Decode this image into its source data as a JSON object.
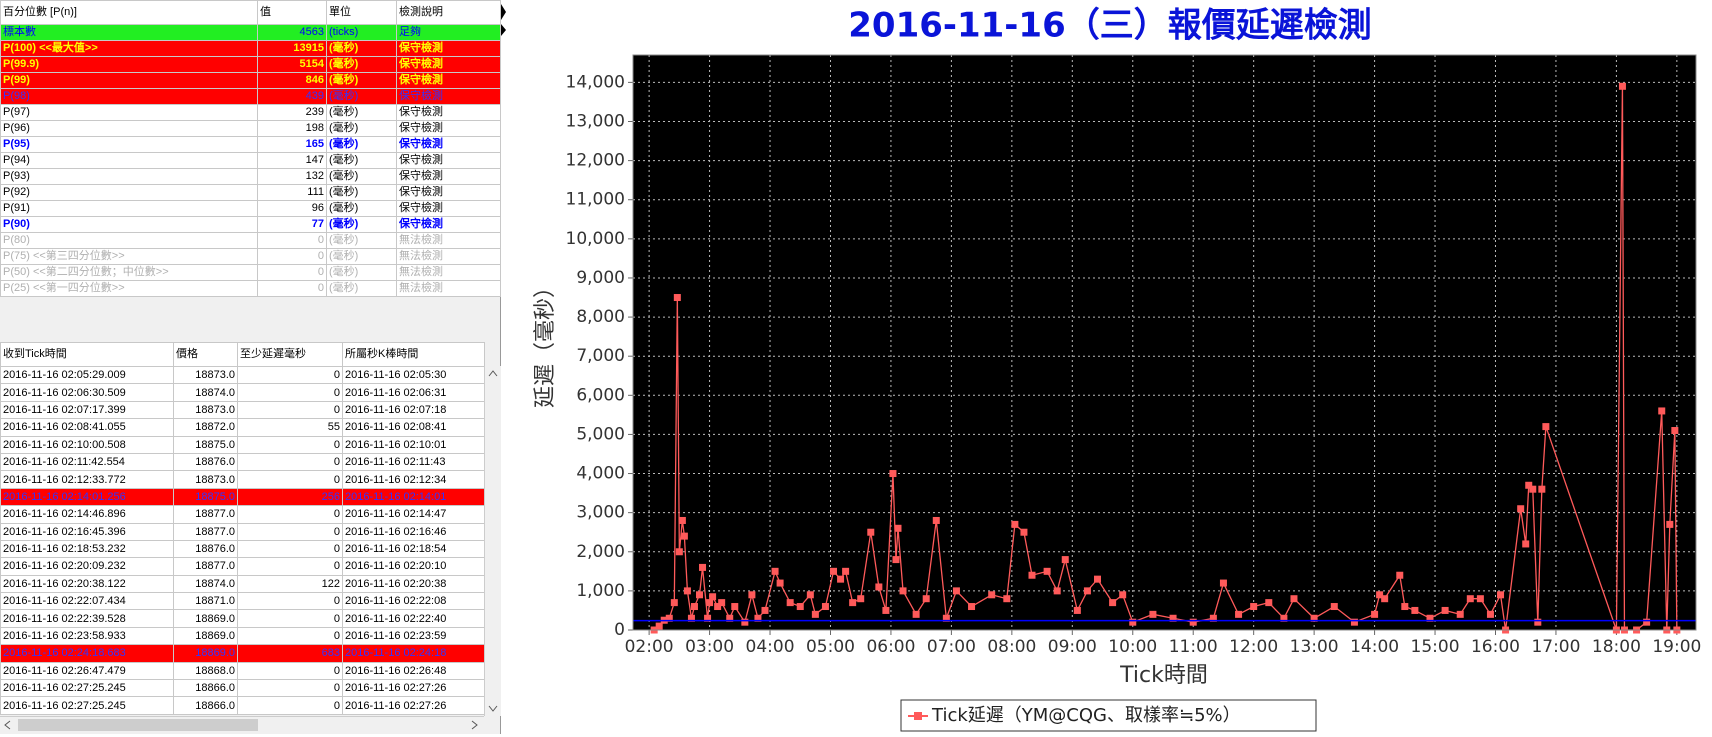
{
  "percentile_table": {
    "header": [
      "百分位數 [P(n)]",
      "值",
      "單位",
      "檢測說明"
    ],
    "rows": [
      {
        "cells": [
          "標本數",
          "4563",
          "(ticks)",
          "足夠"
        ],
        "style": "green"
      },
      {
        "cells": [
          "P(100)  <<最大值>>",
          "13915",
          "(毫秒)",
          "保守檢測"
        ],
        "style": "red-yellow"
      },
      {
        "cells": [
          "P(99.9)",
          "5154",
          "(毫秒)",
          "保守檢測"
        ],
        "style": "red-yellow"
      },
      {
        "cells": [
          "P(99)",
          "846",
          "(毫秒)",
          "保守檢測"
        ],
        "style": "red-yellow"
      },
      {
        "cells": [
          "P(98)",
          "439",
          "(毫秒)",
          "保守檢測"
        ],
        "style": "red-blue"
      },
      {
        "cells": [
          "P(97)",
          "239",
          "(毫秒)",
          "保守檢測"
        ],
        "style": "plain"
      },
      {
        "cells": [
          "P(96)",
          "198",
          "(毫秒)",
          "保守檢測"
        ],
        "style": "plain"
      },
      {
        "cells": [
          "P(95)",
          "165",
          "(毫秒)",
          "保守檢測"
        ],
        "style": "bold-blue"
      },
      {
        "cells": [
          "P(94)",
          "147",
          "(毫秒)",
          "保守檢測"
        ],
        "style": "plain"
      },
      {
        "cells": [
          "P(93)",
          "132",
          "(毫秒)",
          "保守檢測"
        ],
        "style": "plain"
      },
      {
        "cells": [
          "P(92)",
          "111",
          "(毫秒)",
          "保守檢測"
        ],
        "style": "plain"
      },
      {
        "cells": [
          "P(91)",
          "96",
          "(毫秒)",
          "保守檢測"
        ],
        "style": "plain"
      },
      {
        "cells": [
          "P(90)",
          "77",
          "(毫秒)",
          "保守檢測"
        ],
        "style": "bold-blue"
      },
      {
        "cells": [
          "P(80)",
          "0",
          "(毫秒)",
          "無法檢測"
        ],
        "style": "gray"
      },
      {
        "cells": [
          "P(75)  <<第三四分位數>>",
          "0",
          "(毫秒)",
          "無法檢測"
        ],
        "style": "gray"
      },
      {
        "cells": [
          "P(50)  <<第二四分位數；中位數>>",
          "0",
          "(毫秒)",
          "無法檢測"
        ],
        "style": "gray"
      },
      {
        "cells": [
          "P(25)  <<第一四分位數>>",
          "0",
          "(毫秒)",
          "無法檢測"
        ],
        "style": "gray"
      }
    ]
  },
  "tick_table": {
    "header": [
      "收到Tick時間",
      "價格",
      "至少延遲毫秒",
      "所屬秒K棒時間"
    ],
    "rows": [
      {
        "cells": [
          "2016-11-16 02:05:29.009",
          "18873.0",
          "0",
          "2016-11-16 02:05:30"
        ],
        "style": "plain"
      },
      {
        "cells": [
          "2016-11-16 02:06:30.509",
          "18874.0",
          "0",
          "2016-11-16 02:06:31"
        ],
        "style": "plain"
      },
      {
        "cells": [
          "2016-11-16 02:07:17.399",
          "18873.0",
          "0",
          "2016-11-16 02:07:18"
        ],
        "style": "plain"
      },
      {
        "cells": [
          "2016-11-16 02:08:41.055",
          "18872.0",
          "55",
          "2016-11-16 02:08:41"
        ],
        "style": "plain"
      },
      {
        "cells": [
          "2016-11-16 02:10:00.508",
          "18875.0",
          "0",
          "2016-11-16 02:10:01"
        ],
        "style": "plain"
      },
      {
        "cells": [
          "2016-11-16 02:11:42.554",
          "18876.0",
          "0",
          "2016-11-16 02:11:43"
        ],
        "style": "plain"
      },
      {
        "cells": [
          "2016-11-16 02:12:33.772",
          "18873.0",
          "0",
          "2016-11-16 02:12:34"
        ],
        "style": "plain"
      },
      {
        "cells": [
          "2016-11-16 02:14:01.256",
          "18875.0",
          "256",
          "2016-11-16 02:14:01"
        ],
        "style": "red-blue"
      },
      {
        "cells": [
          "2016-11-16 02:14:46.896",
          "18877.0",
          "0",
          "2016-11-16 02:14:47"
        ],
        "style": "plain"
      },
      {
        "cells": [
          "2016-11-16 02:16:45.396",
          "18877.0",
          "0",
          "2016-11-16 02:16:46"
        ],
        "style": "plain"
      },
      {
        "cells": [
          "2016-11-16 02:18:53.232",
          "18876.0",
          "0",
          "2016-11-16 02:18:54"
        ],
        "style": "plain"
      },
      {
        "cells": [
          "2016-11-16 02:20:09.232",
          "18877.0",
          "0",
          "2016-11-16 02:20:10"
        ],
        "style": "plain"
      },
      {
        "cells": [
          "2016-11-16 02:20:38.122",
          "18874.0",
          "122",
          "2016-11-16 02:20:38"
        ],
        "style": "plain"
      },
      {
        "cells": [
          "2016-11-16 02:22:07.434",
          "18871.0",
          "0",
          "2016-11-16 02:22:08"
        ],
        "style": "plain"
      },
      {
        "cells": [
          "2016-11-16 02:22:39.528",
          "18869.0",
          "0",
          "2016-11-16 02:22:40"
        ],
        "style": "plain"
      },
      {
        "cells": [
          "2016-11-16 02:23:58.933",
          "18869.0",
          "0",
          "2016-11-16 02:23:59"
        ],
        "style": "plain"
      },
      {
        "cells": [
          "2016-11-16 02:24:18.683",
          "18869.0",
          "683",
          "2016-11-16 02:24:18"
        ],
        "style": "red-blue"
      },
      {
        "cells": [
          "2016-11-16 02:26:47.479",
          "18868.0",
          "0",
          "2016-11-16 02:26:48"
        ],
        "style": "plain"
      },
      {
        "cells": [
          "2016-11-16 02:27:25.245",
          "18866.0",
          "0",
          "2016-11-16 02:27:26"
        ],
        "style": "plain"
      },
      {
        "cells": [
          "2016-11-16 02:27:25.245",
          "18866.0",
          "0",
          "2016-11-16 02:27:26"
        ],
        "style": "plain"
      }
    ]
  },
  "chart_data": {
    "type": "line",
    "title": "2016-11-16（三）報價延遲檢測",
    "x_label": "Tick時間",
    "y_label": "延遲（毫秒）",
    "xlim": [
      "01:44",
      "19:19"
    ],
    "xticks": [
      "02:00",
      "03:00",
      "04:00",
      "05:00",
      "06:00",
      "07:00",
      "08:00",
      "09:00",
      "10:00",
      "11:00",
      "12:00",
      "13:00",
      "14:00",
      "15:00",
      "16:00",
      "17:00",
      "18:00",
      "19:00"
    ],
    "ylim": [
      0,
      14700
    ],
    "yticks": [
      0,
      {
        "value": 1000,
        "label": "1,000"
      },
      {
        "value": 2000,
        "label": "2,000"
      },
      {
        "value": 3000,
        "label": "3,000"
      },
      {
        "value": 4000,
        "label": "4,000"
      },
      {
        "value": 5000,
        "label": "5,000"
      },
      {
        "value": 6000,
        "label": "6,000"
      },
      {
        "value": 7000,
        "label": "7,000"
      },
      {
        "value": 8000,
        "label": "8,000"
      },
      {
        "value": 9000,
        "label": "9,000"
      },
      {
        "value": 10000,
        "label": "10,000"
      },
      {
        "value": 11000,
        "label": "11,000"
      },
      {
        "value": 12000,
        "label": "12,000"
      },
      {
        "value": 13000,
        "label": "13,000"
      },
      {
        "value": 14000,
        "label": "14,000"
      }
    ],
    "grid": true,
    "hline": 239,
    "hline_color": "#0000ff",
    "x": [
      "02:05",
      "02:10",
      "02:15",
      "02:20",
      "02:25",
      "02:28",
      "02:30",
      "02:33",
      "02:35",
      "02:38",
      "02:42",
      "02:45",
      "02:50",
      "02:53",
      "02:58",
      "03:00",
      "03:03",
      "03:08",
      "03:12",
      "03:20",
      "03:25",
      "03:35",
      "03:42",
      "03:48",
      "03:55",
      "04:05",
      "04:10",
      "04:20",
      "04:30",
      "04:40",
      "04:45",
      "04:55",
      "05:03",
      "05:10",
      "05:15",
      "05:22",
      "05:30",
      "05:40",
      "05:48",
      "05:55",
      "06:02",
      "06:05",
      "06:07",
      "06:12",
      "06:25",
      "06:35",
      "06:45",
      "06:55",
      "07:05",
      "07:20",
      "07:40",
      "07:55",
      "08:03",
      "08:12",
      "08:20",
      "08:35",
      "08:45",
      "08:53",
      "09:05",
      "09:15",
      "09:25",
      "09:40",
      "09:50",
      "10:00",
      "10:20",
      "10:40",
      "11:00",
      "11:20",
      "11:30",
      "11:45",
      "12:00",
      "12:15",
      "12:30",
      "12:40",
      "13:00",
      "13:20",
      "13:40",
      "14:00",
      "14:05",
      "14:10",
      "14:25",
      "14:30",
      "14:40",
      "14:55",
      "15:10",
      "15:25",
      "15:35",
      "15:45",
      "15:55",
      "16:05",
      "16:10",
      "16:25",
      "16:30",
      "16:33",
      "16:37",
      "16:42",
      "16:46",
      "16:50",
      "18:00",
      "18:06",
      "18:08",
      "18:20",
      "18:30",
      "18:45",
      "18:50",
      "18:53",
      "18:58",
      "19:00"
    ],
    "series": [
      {
        "name": "Tick延遲（YM@CQG、取樣率≒5%）",
        "color": "#ff5a5a",
        "values": [
          0,
          100,
          250,
          300,
          700,
          8500,
          2000,
          2800,
          2400,
          1000,
          300,
          600,
          900,
          1600,
          300,
          700,
          850,
          600,
          700,
          300,
          600,
          200,
          900,
          300,
          500,
          1500,
          1200,
          700,
          600,
          900,
          400,
          600,
          1500,
          1300,
          1500,
          700,
          800,
          2500,
          1100,
          500,
          4000,
          1800,
          2600,
          1000,
          400,
          800,
          2800,
          300,
          1000,
          600,
          900,
          800,
          2700,
          2500,
          1400,
          1500,
          1000,
          1800,
          500,
          1000,
          1300,
          700,
          900,
          200,
          400,
          300,
          200,
          300,
          1200,
          400,
          600,
          700,
          300,
          800,
          300,
          600,
          200,
          400,
          900,
          800,
          1400,
          600,
          500,
          300,
          500,
          400,
          800,
          800,
          400,
          900,
          0,
          3100,
          2200,
          3700,
          3600,
          200,
          3600,
          5200,
          0,
          13900,
          0,
          0,
          200,
          5600,
          0,
          2700,
          5100,
          0
        ]
      }
    ]
  }
}
